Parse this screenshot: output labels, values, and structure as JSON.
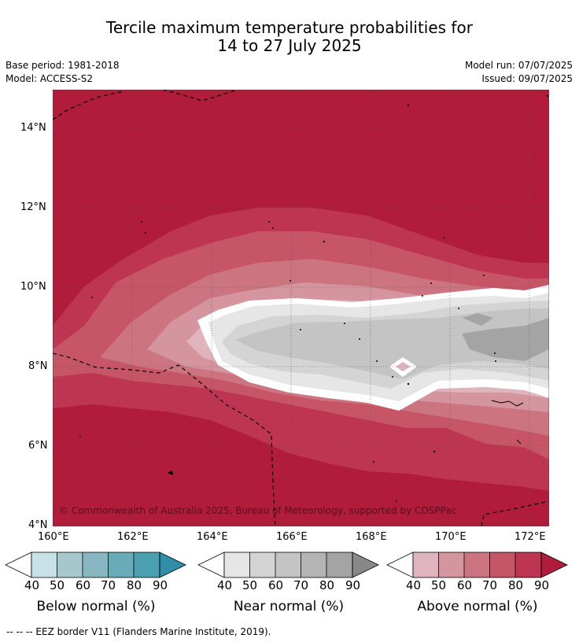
{
  "title": {
    "line1": "Tercile maximum temperature probabilities for",
    "line2": "14 to 27 July 2025"
  },
  "meta": {
    "base_period": "Base period: 1981-2018",
    "model": "Model: ACCESS-S2",
    "model_run": "Model run: 07/07/2025",
    "issued": "Issued: 09/07/2025"
  },
  "map": {
    "lat_ticks": [
      "14°N",
      "12°N",
      "10°N",
      "8°N",
      "6°N",
      "4°N"
    ],
    "lon_ticks": [
      "160°E",
      "162°E",
      "164°E",
      "166°E",
      "168°E",
      "170°E",
      "172°E"
    ],
    "copyright": "© Commonwealth of Australia 2025, Bureau of Meteorology, supported by COSPPac"
  },
  "colorbars": [
    {
      "title": "Below normal (%)",
      "labels": [
        "40",
        "50",
        "60",
        "70",
        "80",
        "90"
      ],
      "colors": [
        "#c7e1e6",
        "#a6c7cc",
        "#88b7c2",
        "#6aabba",
        "#4a9fb0",
        "#2f8fa6"
      ]
    },
    {
      "title": "Near normal (%)",
      "labels": [
        "40",
        "50",
        "60",
        "70",
        "80",
        "90"
      ],
      "colors": [
        "#e6e6e6",
        "#d4d4d4",
        "#c4c4c4",
        "#b4b4b4",
        "#a4a4a4",
        "#888888"
      ]
    },
    {
      "title": "Above normal (%)",
      "labels": [
        "40",
        "50",
        "60",
        "70",
        "80",
        "90"
      ],
      "colors": [
        "#e0b4bc",
        "#d4959f",
        "#cc7480",
        "#c65566",
        "#bd3550",
        "#b01c3a"
      ]
    }
  ],
  "footer": {
    "legend": "--  --  -- EEZ border V11 (Flanders Marine Institute, 2019)."
  }
}
